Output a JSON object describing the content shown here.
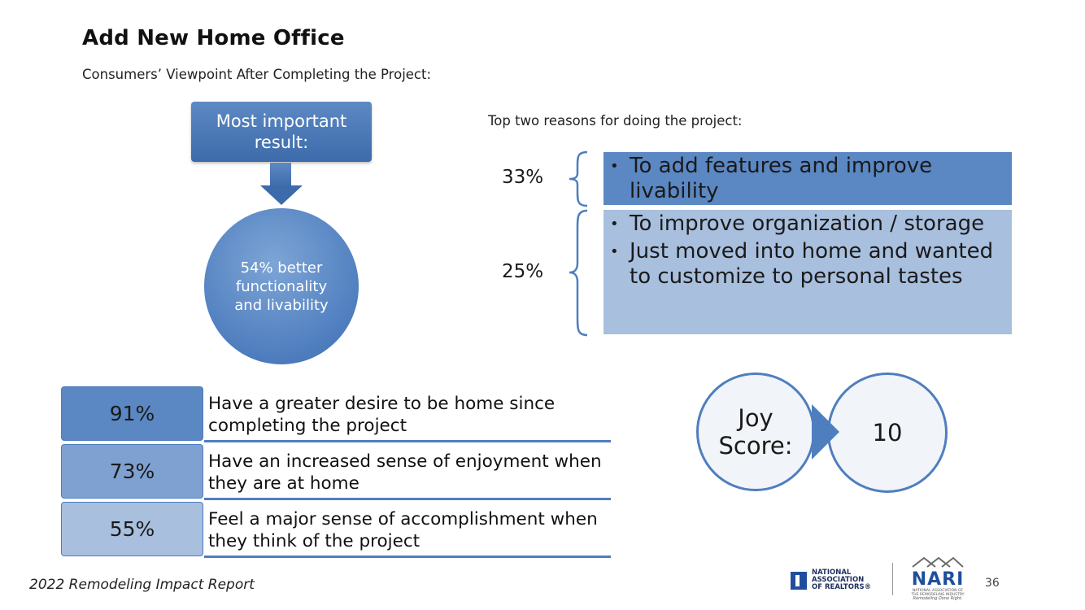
{
  "header": {
    "title": "Add New Home Office",
    "subtitle": "Consumers’ Viewpoint After Completing the Project:"
  },
  "result": {
    "box_label": "Most important result:",
    "circle_text": "54% better functionality and livability"
  },
  "reasons": {
    "heading": "Top two reasons for doing the project:",
    "groups": [
      {
        "percent": "33%",
        "items": [
          "To add features and improve livability"
        ]
      },
      {
        "percent": "25%",
        "items": [
          "To improve organization / storage",
          "Just moved into home and wanted to customize to personal tastes"
        ]
      }
    ]
  },
  "stats": [
    {
      "percent": "91%",
      "text": "Have a greater desire to be home since completing the project",
      "color": "#5b87c2"
    },
    {
      "percent": "73%",
      "text": "Have an increased sense of enjoyment when they are at home",
      "color": "#7fa1d1"
    },
    {
      "percent": "55%",
      "text": "Feel a major sense of accomplishment when they think of the project",
      "color": "#a8bfde"
    }
  ],
  "joy": {
    "label": "Joy Score:",
    "score": "10"
  },
  "footer": {
    "report": "2022 Remodeling Impact Report",
    "page": "36"
  },
  "logos": {
    "realtors_text": "NATIONAL ASSOCIATION OF REALTORS®",
    "nari_word": "NARI",
    "nari_small": "NATIONAL ASSOCIATION OF THE REMODELING INDUSTRY",
    "nari_tagline": "Remodeling Done Right."
  },
  "colors": {
    "accent": "#4f7ebf",
    "dark_box": "#5b87c2",
    "light_box": "#a8bfde"
  }
}
